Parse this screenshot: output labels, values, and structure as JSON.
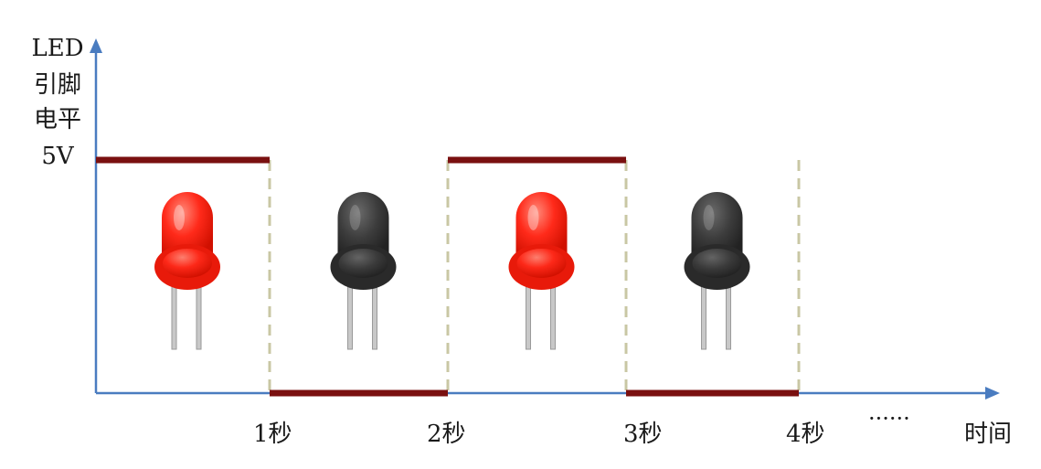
{
  "y_axis": {
    "label_lines": [
      "LED",
      "引脚",
      "电平"
    ],
    "level_label": "5V"
  },
  "x_axis": {
    "label": "时间",
    "ticks": [
      "1秒",
      "2秒",
      "3秒",
      "4秒"
    ],
    "continuation": "······"
  },
  "signal": {
    "levels": [
      "high",
      "low",
      "high",
      "low"
    ],
    "color": "#7a1010"
  },
  "leds": [
    {
      "state": "on",
      "color": "#ff2a1a"
    },
    {
      "state": "off",
      "color": "#3c3c3c"
    },
    {
      "state": "on",
      "color": "#ff2a1a"
    },
    {
      "state": "off",
      "color": "#3c3c3c"
    }
  ],
  "colors": {
    "axis": "#4a7cc0",
    "divider": "#c9c7a4"
  }
}
